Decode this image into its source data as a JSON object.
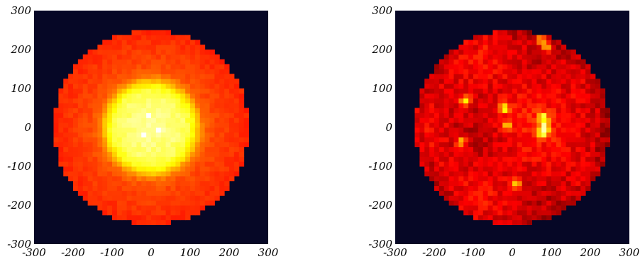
{
  "chart_data": [
    {
      "type": "heatmap",
      "title": "",
      "xlabel": "",
      "ylabel": "",
      "xlim": [
        -300,
        300
      ],
      "ylim": [
        -300,
        300
      ],
      "x_ticks": [
        -300,
        -200,
        -100,
        0,
        100,
        200,
        300
      ],
      "y_ticks": [
        -300,
        -200,
        -100,
        0,
        100,
        200,
        300
      ],
      "x_tick_labels": [
        "-300",
        "-200",
        "-100",
        "0",
        "100",
        "200",
        "300"
      ],
      "y_tick_labels": [
        "-300",
        "-200",
        "-100",
        "0",
        "100",
        "200",
        "300"
      ],
      "grid": false,
      "legend": "none",
      "colormap": "hot",
      "background_color": "#060726",
      "disk_center": [
        0,
        0
      ],
      "disk_radius": 250,
      "bins": 48,
      "profile": "centrally-peaked radial falloff",
      "hotspots": []
    },
    {
      "type": "heatmap",
      "title": "",
      "xlabel": "",
      "ylabel": "",
      "xlim": [
        -300,
        300
      ],
      "ylim": [
        -300,
        300
      ],
      "x_ticks": [
        -300,
        -200,
        -100,
        0,
        100,
        200,
        300
      ],
      "y_ticks": [
        -300,
        -200,
        -100,
        0,
        100,
        200,
        300
      ],
      "x_tick_labels": [
        "-300",
        "-200",
        "-100",
        "0",
        "100",
        "200",
        "300"
      ],
      "y_tick_labels": [
        "-300",
        "-200",
        "-100",
        "0",
        "100",
        "200",
        "300"
      ],
      "grid": false,
      "legend": "none",
      "colormap": "hot",
      "background_color": "#060726",
      "disk_center": [
        0,
        0
      ],
      "disk_radius": 250,
      "bins": 48,
      "profile": "flat with localized hot spots",
      "hotspots": [
        {
          "x": 75,
          "y": 225,
          "intensity": 1.0
        },
        {
          "x": 90,
          "y": 205,
          "intensity": 0.8
        },
        {
          "x": -120,
          "y": 70,
          "intensity": 0.85
        },
        {
          "x": -20,
          "y": 50,
          "intensity": 0.95
        },
        {
          "x": -15,
          "y": 5,
          "intensity": 0.8
        },
        {
          "x": 80,
          "y": 25,
          "intensity": 0.95
        },
        {
          "x": 85,
          "y": 0,
          "intensity": 1.0
        },
        {
          "x": 75,
          "y": -15,
          "intensity": 0.85
        },
        {
          "x": -130,
          "y": -35,
          "intensity": 0.75
        },
        {
          "x": 10,
          "y": -145,
          "intensity": 0.95
        }
      ]
    }
  ]
}
